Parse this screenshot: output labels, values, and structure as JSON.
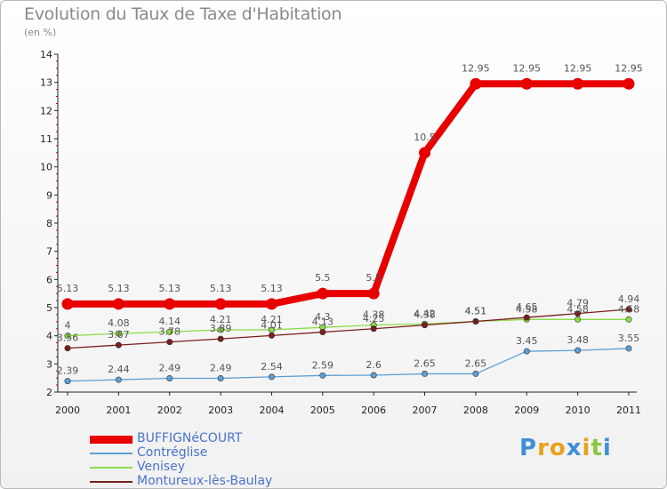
{
  "chart_data": {
    "type": "line",
    "title": "Evolution du Taux de Taxe d'Habitation",
    "subtitle": "(en %)",
    "x": [
      "2000",
      "2001",
      "2002",
      "2003",
      "2004",
      "2005",
      "2006",
      "2007",
      "2008",
      "2009",
      "2010",
      "2011"
    ],
    "ylim": [
      2,
      14
    ],
    "yticks": [
      "2",
      "3",
      "4",
      "5",
      "6",
      "7",
      "8",
      "9",
      "10",
      "11",
      "12",
      "13",
      "14"
    ],
    "grid": false,
    "legend_position": "bottom-left",
    "series": [
      {
        "name": "BUFFIGNéCOURT",
        "color": "#e80000",
        "values": [
          5.13,
          5.13,
          5.13,
          5.13,
          5.13,
          5.5,
          5.5,
          10.5,
          12.95,
          12.95,
          12.95,
          12.95
        ],
        "labels": [
          "5.13",
          "5.13",
          "5.13",
          "5.13",
          "5.13",
          "5.5",
          "5.5",
          "10.5",
          "12.95",
          "12.95",
          "12.95",
          "12.95"
        ]
      },
      {
        "name": "Contréglise",
        "color": "#5e9fd5",
        "values": [
          2.39,
          2.44,
          2.49,
          2.49,
          2.54,
          2.59,
          2.6,
          2.65,
          2.65,
          3.45,
          3.48,
          3.55
        ],
        "labels": [
          "2.39",
          "2.44",
          "2.49",
          "2.49",
          "2.54",
          "2.59",
          "2.6",
          "2.65",
          "2.65",
          "3.45",
          "3.48",
          "3.55"
        ]
      },
      {
        "name": "Venisey",
        "color": "#8cdc46",
        "values": [
          4,
          4.08,
          4.14,
          4.21,
          4.21,
          4.3,
          4.38,
          4.42,
          4.51,
          4.58,
          4.58,
          4.58
        ],
        "labels": [
          "4",
          "4.08",
          "4.14",
          "4.21",
          "4.21",
          "4.3",
          "4.38",
          "4.42",
          "4.51",
          "4.58",
          "4.58",
          "4.58"
        ]
      },
      {
        "name": "Montureux-lès-Baulay",
        "color": "#7a1e1e",
        "values": [
          3.56,
          3.67,
          3.78,
          3.89,
          4.01,
          4.13,
          4.25,
          4.38,
          4.51,
          4.65,
          4.79,
          4.94
        ],
        "labels": [
          "3.56",
          "3.67",
          "3.78",
          "3.89",
          "4.01",
          "4.13",
          "4.25",
          "4.38",
          "4.51",
          "4.65",
          "4.79",
          "4.94"
        ]
      }
    ]
  },
  "logo": {
    "letters": [
      "P",
      "r",
      "o",
      "x",
      "i",
      "t",
      "i"
    ],
    "colors": [
      "#3f8fd8",
      "#e8a21b",
      "#e8a21b",
      "#3f8fd8",
      "#e8a21b",
      "#8cc63f",
      "#3f8fd8"
    ]
  }
}
